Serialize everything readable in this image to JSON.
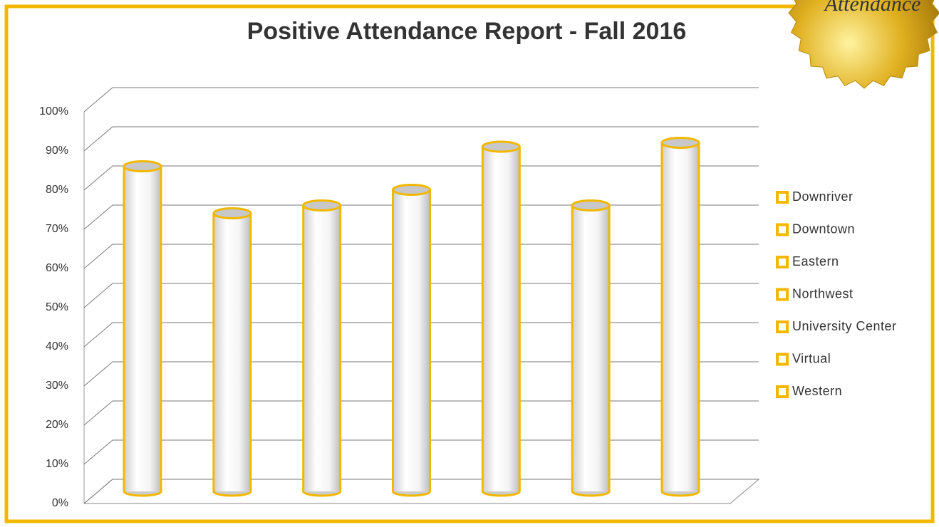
{
  "chart_data": {
    "type": "bar",
    "title": "Positive Attendance Report - Fall 2016",
    "badge_text": "Attendance",
    "categories": [
      "Downriver",
      "Downtown",
      "Eastern",
      "Northwest",
      "University Center",
      "Virtual",
      "Western"
    ],
    "values": [
      83,
      71,
      73,
      77,
      88,
      73,
      89
    ],
    "color": "#f2b800",
    "ylim": [
      0,
      100
    ],
    "yticks": [
      {
        "value": 0,
        "label": "0%"
      },
      {
        "value": 10,
        "label": "10%"
      },
      {
        "value": 20,
        "label": "20%"
      },
      {
        "value": 30,
        "label": "30%"
      },
      {
        "value": 40,
        "label": "40%"
      },
      {
        "value": 50,
        "label": "50%"
      },
      {
        "value": 60,
        "label": "60%"
      },
      {
        "value": 70,
        "label": "70%"
      },
      {
        "value": 80,
        "label": "80%"
      },
      {
        "value": 90,
        "label": "90%"
      },
      {
        "value": 100,
        "label": "100%"
      }
    ],
    "grid": true,
    "legend": "right"
  }
}
